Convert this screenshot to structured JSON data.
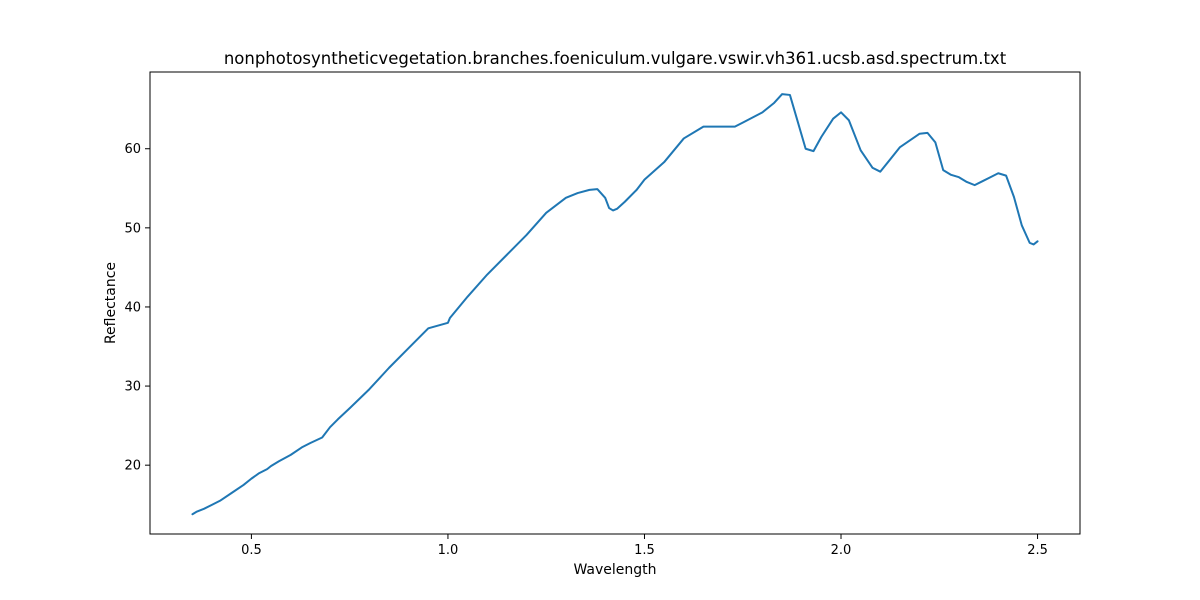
{
  "chart_data": {
    "type": "line",
    "title": "nonphotosyntheticvegetation.branches.foeniculum.vulgare.vswir.vh361.ucsb.asd.spectrum.txt",
    "xlabel": "Wavelength",
    "ylabel": "Reflectance",
    "xlim": [
      0.242,
      2.608
    ],
    "ylim": [
      11.3,
      69.7
    ],
    "xticks": [
      0.5,
      1.0,
      1.5,
      2.0,
      2.5
    ],
    "xtick_labels": [
      "0.5",
      "1.0",
      "1.5",
      "2.0",
      "2.5"
    ],
    "yticks": [
      20,
      30,
      40,
      50,
      60
    ],
    "ytick_labels": [
      "20",
      "30",
      "40",
      "50",
      "60"
    ],
    "grid": false,
    "legend": "none",
    "line_color": "#1f77b4",
    "series": [
      {
        "x": [
          0.35,
          0.36,
          0.38,
          0.4,
          0.42,
          0.45,
          0.48,
          0.5,
          0.52,
          0.54,
          0.55,
          0.57,
          0.6,
          0.63,
          0.65,
          0.68,
          0.7,
          0.72,
          0.75,
          0.8,
          0.85,
          0.9,
          0.95,
          1.0,
          1.005,
          1.05,
          1.1,
          1.15,
          1.2,
          1.25,
          1.3,
          1.33,
          1.36,
          1.38,
          1.4,
          1.41,
          1.42,
          1.43,
          1.45,
          1.48,
          1.5,
          1.55,
          1.6,
          1.65,
          1.7,
          1.73,
          1.75,
          1.8,
          1.83,
          1.85,
          1.87,
          1.89,
          1.91,
          1.93,
          1.95,
          1.98,
          2.0,
          2.02,
          2.05,
          2.08,
          2.1,
          2.15,
          2.2,
          2.22,
          2.24,
          2.26,
          2.28,
          2.3,
          2.32,
          2.34,
          2.36,
          2.38,
          2.4,
          2.42,
          2.44,
          2.46,
          2.48,
          2.49,
          2.5
        ],
        "y": [
          13.8,
          14.1,
          14.5,
          15.0,
          15.5,
          16.5,
          17.5,
          18.3,
          19.0,
          19.5,
          19.9,
          20.5,
          21.3,
          22.3,
          22.8,
          23.5,
          24.8,
          25.8,
          27.2,
          29.6,
          32.3,
          34.8,
          37.3,
          38.0,
          38.6,
          41.3,
          44.1,
          46.6,
          49.1,
          51.9,
          53.8,
          54.4,
          54.8,
          54.9,
          53.8,
          52.5,
          52.2,
          52.4,
          53.3,
          54.8,
          56.1,
          58.3,
          61.3,
          62.8,
          62.8,
          62.8,
          63.3,
          64.6,
          65.8,
          66.9,
          66.8,
          63.4,
          60.0,
          59.7,
          61.5,
          63.8,
          64.6,
          63.6,
          59.8,
          57.6,
          57.1,
          60.2,
          61.9,
          62.0,
          60.8,
          57.3,
          56.7,
          56.4,
          55.8,
          55.4,
          55.9,
          56.4,
          56.9,
          56.6,
          53.9,
          50.3,
          48.1,
          47.9,
          48.3
        ]
      }
    ]
  }
}
